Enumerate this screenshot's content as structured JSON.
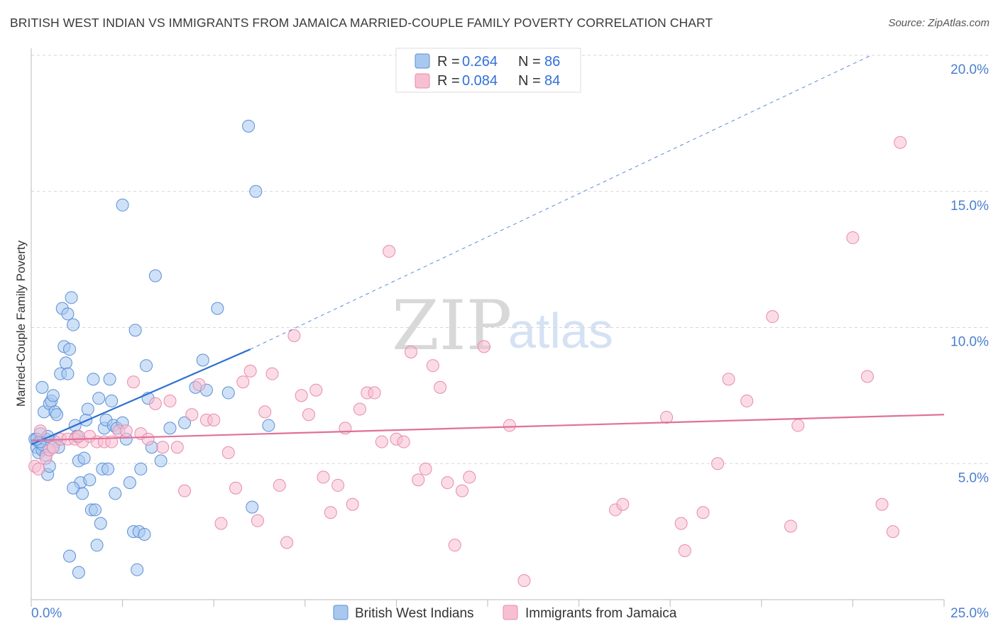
{
  "chart_data": {
    "type": "scatter",
    "title": "BRITISH WEST INDIAN VS IMMIGRANTS FROM JAMAICA MARRIED-COUPLE FAMILY POVERTY CORRELATION CHART",
    "source": "Source: ZipAtlas.com",
    "ylabel": "Married-Couple Family Poverty",
    "xlim": [
      0,
      25
    ],
    "ylim": [
      0,
      20
    ],
    "x_tick_labels": [
      "0.0%",
      "25.0%"
    ],
    "y_tick_labels": [
      "5.0%",
      "10.0%",
      "15.0%",
      "20.0%"
    ],
    "y_ticks": [
      5,
      10,
      15,
      20
    ],
    "watermark": {
      "zip": "ZIP",
      "atlas": "atlas"
    },
    "legend": {
      "rows": [
        {
          "r_label": "R = ",
          "r_value": "0.264",
          "n_label": "N = ",
          "n_value": "86"
        },
        {
          "r_label": "R = ",
          "r_value": "0.084",
          "n_label": "N = ",
          "n_value": "84"
        }
      ]
    },
    "series": [
      {
        "name": "British West Indians",
        "color": "#a8c8f0",
        "stroke": "#5b8fd6",
        "line_color": "#2f6fd0",
        "trend": {
          "x0": 0.0,
          "y0": 5.7,
          "x1": 6.0,
          "y1": 9.2,
          "dash_x1": 23.0,
          "dash_y1": 20.0
        },
        "points": [
          [
            0.1,
            5.9
          ],
          [
            0.15,
            5.6
          ],
          [
            0.2,
            5.4
          ],
          [
            0.2,
            5.8
          ],
          [
            0.25,
            6.1
          ],
          [
            0.3,
            5.5
          ],
          [
            0.3,
            5.7
          ],
          [
            0.35,
            6.9
          ],
          [
            0.4,
            5.9
          ],
          [
            0.4,
            5.3
          ],
          [
            0.45,
            4.6
          ],
          [
            0.5,
            7.2
          ],
          [
            0.55,
            7.3
          ],
          [
            0.6,
            7.5
          ],
          [
            0.65,
            5.8
          ],
          [
            0.65,
            6.9
          ],
          [
            0.7,
            6.8
          ],
          [
            0.75,
            5.6
          ],
          [
            0.8,
            8.3
          ],
          [
            0.85,
            10.7
          ],
          [
            0.9,
            9.3
          ],
          [
            0.95,
            8.7
          ],
          [
            1.0,
            8.3
          ],
          [
            1.0,
            10.5
          ],
          [
            1.05,
            9.2
          ],
          [
            1.1,
            11.1
          ],
          [
            1.15,
            10.1
          ],
          [
            1.2,
            6.4
          ],
          [
            1.25,
            6.0
          ],
          [
            1.3,
            5.1
          ],
          [
            1.35,
            4.3
          ],
          [
            1.4,
            3.9
          ],
          [
            1.45,
            5.2
          ],
          [
            1.5,
            6.6
          ],
          [
            1.55,
            7.0
          ],
          [
            1.6,
            4.4
          ],
          [
            1.65,
            3.3
          ],
          [
            1.7,
            8.1
          ],
          [
            1.75,
            3.3
          ],
          [
            1.8,
            2.0
          ],
          [
            1.85,
            7.4
          ],
          [
            1.9,
            2.8
          ],
          [
            1.95,
            4.8
          ],
          [
            2.0,
            6.3
          ],
          [
            2.05,
            6.6
          ],
          [
            2.1,
            4.8
          ],
          [
            2.15,
            8.1
          ],
          [
            2.2,
            7.3
          ],
          [
            2.25,
            6.4
          ],
          [
            2.3,
            3.9
          ],
          [
            2.35,
            6.3
          ],
          [
            2.5,
            14.5
          ],
          [
            2.6,
            5.9
          ],
          [
            2.7,
            4.3
          ],
          [
            2.8,
            2.5
          ],
          [
            2.85,
            9.9
          ],
          [
            2.9,
            1.1
          ],
          [
            2.95,
            2.5
          ],
          [
            3.0,
            4.8
          ],
          [
            3.1,
            2.4
          ],
          [
            3.15,
            8.6
          ],
          [
            3.2,
            7.4
          ],
          [
            3.3,
            5.6
          ],
          [
            3.4,
            11.9
          ],
          [
            3.55,
            5.1
          ],
          [
            3.8,
            6.3
          ],
          [
            4.2,
            6.5
          ],
          [
            4.5,
            7.8
          ],
          [
            4.7,
            8.8
          ],
          [
            4.8,
            7.7
          ],
          [
            5.1,
            10.7
          ],
          [
            5.4,
            7.6
          ],
          [
            5.95,
            17.4
          ],
          [
            6.05,
            3.4
          ],
          [
            6.15,
            15.0
          ],
          [
            6.5,
            6.4
          ],
          [
            0.5,
            4.9
          ],
          [
            0.6,
            5.6
          ],
          [
            1.15,
            4.1
          ],
          [
            0.25,
            5.8
          ],
          [
            1.05,
            1.6
          ],
          [
            1.3,
            1.0
          ],
          [
            0.3,
            7.8
          ],
          [
            0.15,
            5.9
          ],
          [
            0.45,
            6.0
          ],
          [
            2.5,
            6.5
          ]
        ]
      },
      {
        "name": "Immigrants from Jamaica",
        "color": "#f7c0d2",
        "stroke": "#e88aaa",
        "line_color": "#e0709a",
        "trend": {
          "x0": 0.0,
          "y0": 5.85,
          "x1": 25.0,
          "y1": 6.8
        },
        "points": [
          [
            0.1,
            4.9
          ],
          [
            0.2,
            4.8
          ],
          [
            0.25,
            6.2
          ],
          [
            0.4,
            5.2
          ],
          [
            0.5,
            5.5
          ],
          [
            0.6,
            5.6
          ],
          [
            0.8,
            5.9
          ],
          [
            1.0,
            5.9
          ],
          [
            1.2,
            5.9
          ],
          [
            1.4,
            5.8
          ],
          [
            1.6,
            6.0
          ],
          [
            1.8,
            5.8
          ],
          [
            2.0,
            5.8
          ],
          [
            2.2,
            5.8
          ],
          [
            2.4,
            6.2
          ],
          [
            2.6,
            6.2
          ],
          [
            2.8,
            8.0
          ],
          [
            3.0,
            6.1
          ],
          [
            3.2,
            5.9
          ],
          [
            3.4,
            7.2
          ],
          [
            3.6,
            5.6
          ],
          [
            3.8,
            7.3
          ],
          [
            4.0,
            5.6
          ],
          [
            4.2,
            4.0
          ],
          [
            4.4,
            6.8
          ],
          [
            4.6,
            7.9
          ],
          [
            4.8,
            6.6
          ],
          [
            5.0,
            6.6
          ],
          [
            5.2,
            2.8
          ],
          [
            5.4,
            5.4
          ],
          [
            5.6,
            4.1
          ],
          [
            5.8,
            8.0
          ],
          [
            6.0,
            8.4
          ],
          [
            6.2,
            2.9
          ],
          [
            6.4,
            6.9
          ],
          [
            6.6,
            8.3
          ],
          [
            6.8,
            4.2
          ],
          [
            7.0,
            2.1
          ],
          [
            7.2,
            9.7
          ],
          [
            7.4,
            7.5
          ],
          [
            7.6,
            6.8
          ],
          [
            7.8,
            7.7
          ],
          [
            8.0,
            4.5
          ],
          [
            8.2,
            3.2
          ],
          [
            8.4,
            4.2
          ],
          [
            8.6,
            6.3
          ],
          [
            8.8,
            3.5
          ],
          [
            9.0,
            7.0
          ],
          [
            9.2,
            7.6
          ],
          [
            9.4,
            7.6
          ],
          [
            9.6,
            5.8
          ],
          [
            9.8,
            12.8
          ],
          [
            10.0,
            5.9
          ],
          [
            10.2,
            5.8
          ],
          [
            10.4,
            9.1
          ],
          [
            10.6,
            4.4
          ],
          [
            10.8,
            4.8
          ],
          [
            11.0,
            8.6
          ],
          [
            11.2,
            7.8
          ],
          [
            11.4,
            4.3
          ],
          [
            11.6,
            2.0
          ],
          [
            11.8,
            4.0
          ],
          [
            12.0,
            4.5
          ],
          [
            12.4,
            9.3
          ],
          [
            13.1,
            6.4
          ],
          [
            13.5,
            0.7
          ],
          [
            16.0,
            3.3
          ],
          [
            16.2,
            3.5
          ],
          [
            17.4,
            6.7
          ],
          [
            17.8,
            2.8
          ],
          [
            17.9,
            1.8
          ],
          [
            18.4,
            3.2
          ],
          [
            18.8,
            5.0
          ],
          [
            19.1,
            8.1
          ],
          [
            19.6,
            7.3
          ],
          [
            20.3,
            10.4
          ],
          [
            20.8,
            2.7
          ],
          [
            21.0,
            6.4
          ],
          [
            22.5,
            13.3
          ],
          [
            22.9,
            8.2
          ],
          [
            23.3,
            3.5
          ],
          [
            23.6,
            2.5
          ],
          [
            23.8,
            16.8
          ],
          [
            1.3,
            6.0
          ]
        ]
      }
    ]
  }
}
